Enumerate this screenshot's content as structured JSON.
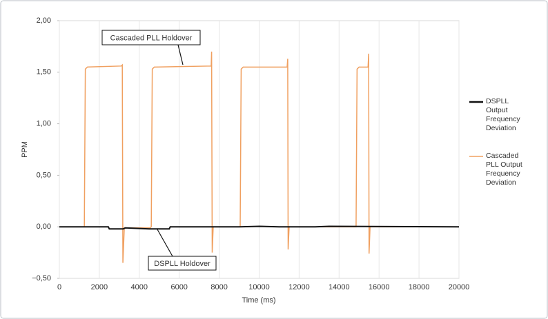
{
  "chart_data": {
    "type": "line",
    "xlabel": "Time (ms)",
    "ylabel": "PPM",
    "xlim": [
      0,
      20000
    ],
    "xticks": [
      0,
      2000,
      4000,
      6000,
      8000,
      10000,
      12000,
      14000,
      16000,
      18000,
      20000
    ],
    "ylim": [
      -0.5,
      2.0
    ],
    "yticks": [
      {
        "value": -0.5,
        "label": "−0,50"
      },
      {
        "value": 0,
        "label": "0,00"
      },
      {
        "value": 0.5,
        "label": "0,50"
      },
      {
        "value": 1.0,
        "label": "1,00"
      },
      {
        "value": 1.5,
        "label": "1,50"
      },
      {
        "value": 2.0,
        "label": "2,00"
      }
    ],
    "grid": "x",
    "legend": "right",
    "series": [
      {
        "name": "DSPLL Output Frequency Deviation",
        "color": "#111111",
        "x": [
          0,
          2450,
          2500,
          3200,
          3300,
          4500,
          5500,
          5550,
          7600,
          9000,
          10000,
          11000,
          12800,
          13500,
          20000
        ],
        "values": [
          0,
          0,
          -0.02,
          -0.02,
          -0.01,
          -0.02,
          -0.02,
          0,
          0,
          0,
          0.005,
          0,
          0,
          0.005,
          0
        ]
      },
      {
        "name": "Cascaded PLL Output Frequency Deviation",
        "color": "#f0a060",
        "x": [
          0,
          1250,
          1300,
          1400,
          3100,
          3150,
          3180,
          3250,
          4550,
          4600,
          4650,
          4750,
          7600,
          7620,
          7650,
          7700,
          9050,
          9100,
          9200,
          11400,
          11430,
          11450,
          11500,
          14850,
          14900,
          15000,
          15450,
          15480,
          15500,
          15550,
          20000
        ],
        "values": [
          0,
          0,
          1.53,
          1.55,
          1.56,
          1.57,
          -0.35,
          -0.01,
          -0.01,
          0,
          1.53,
          1.55,
          1.56,
          1.7,
          -0.25,
          0,
          0,
          1.53,
          1.55,
          1.55,
          1.63,
          -0.22,
          0,
          0,
          1.53,
          1.55,
          1.55,
          1.68,
          -0.26,
          0,
          0
        ]
      }
    ],
    "annotations": [
      {
        "text": "Cascaded PLL Holdover"
      },
      {
        "text": "DSPLL Holdover"
      }
    ]
  }
}
